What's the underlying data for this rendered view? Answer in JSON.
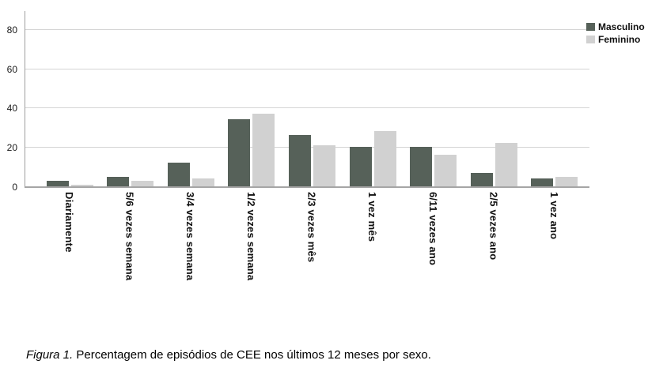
{
  "figure": {
    "caption": {
      "label": "Figura 1.",
      "text": "Percentagem de episódios de CEE nos últimos 12 meses por sexo."
    }
  },
  "chart_data": {
    "type": "bar",
    "title": "",
    "xlabel": "",
    "ylabel": "",
    "categories": [
      "Diariamente",
      "5/6 vezes semana",
      "3/4 vezes semana",
      "1/2 vezes semana",
      "2/3 vezes mês",
      "1 vez mês",
      "6/11 vezes ano",
      "2/5 vezes ano",
      "1 vez ano"
    ],
    "series": [
      {
        "name": "Masculino",
        "color": "#566159",
        "values": [
          3,
          5,
          12,
          34,
          26,
          20,
          20,
          7,
          4
        ]
      },
      {
        "name": "Feminino",
        "color": "#d1d1d1",
        "values": [
          1,
          3,
          4,
          37,
          21,
          28,
          16,
          22,
          5
        ]
      }
    ],
    "ylim": [
      0,
      90
    ],
    "yticks": [
      0,
      20,
      40,
      60,
      80
    ],
    "grid": true,
    "legend_position": "top-right",
    "colors": {
      "gridline": "#d4d4d4",
      "axis": "#9e9e9e"
    }
  }
}
